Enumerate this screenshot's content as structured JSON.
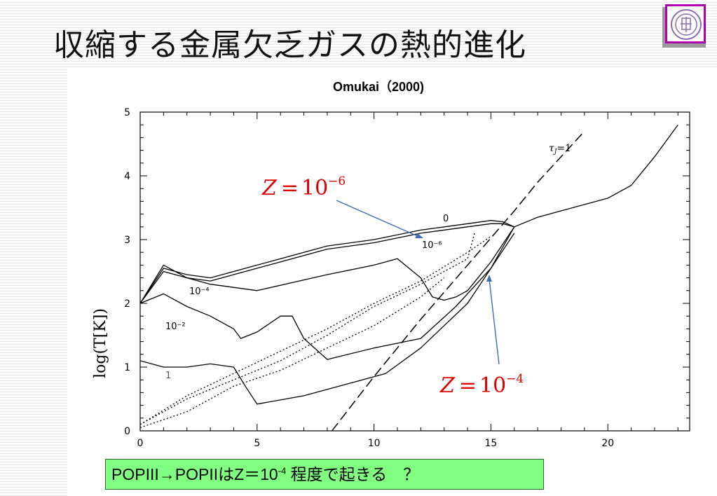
{
  "slide": {
    "title": "収縮する金属欠乏ガスの熱的進化",
    "citation": "Omukai（2000)",
    "caption_main": "POPIII→POPIIはZ＝10",
    "caption_exp": "-4",
    "caption_tail": " 程度で起きる　？"
  },
  "annotations": {
    "z6_base": "Z",
    "z6_eq": "=",
    "z6_mant": "10",
    "z6_exp": "−6",
    "z4_base": "Z",
    "z4_eq": "=",
    "z4_mant": "10",
    "z4_exp": "−4",
    "tau_label": "τ",
    "tau_sub": "J",
    "tau_eq": "=1",
    "curve_labels": [
      "0",
      "10⁻⁶",
      "10⁻⁴",
      "10⁻²",
      "1"
    ]
  },
  "chart_data": {
    "type": "line",
    "ylabel": "log(T[K])",
    "xlabel": "",
    "xlim": [
      0,
      23.5
    ],
    "ylim": [
      0,
      5
    ],
    "xticks": [
      "0",
      "5",
      "10",
      "15",
      "20"
    ],
    "yticks": [
      "0",
      "1",
      "2",
      "3",
      "4",
      "5"
    ],
    "series": [
      {
        "name": "0",
        "x": [
          0,
          1,
          2,
          3,
          5,
          8,
          10,
          12,
          14,
          15,
          15.5,
          16,
          17,
          18,
          20,
          21,
          22,
          23
        ],
        "y": [
          2.0,
          2.55,
          2.45,
          2.4,
          2.6,
          2.9,
          3.0,
          3.15,
          3.25,
          3.3,
          3.28,
          3.2,
          3.35,
          3.45,
          3.65,
          3.85,
          4.3,
          4.8
        ]
      },
      {
        "name": "10⁻⁶",
        "x": [
          0,
          1,
          2,
          3,
          5,
          8,
          10,
          12,
          14,
          15,
          15.5,
          16
        ],
        "y": [
          2.0,
          2.5,
          2.4,
          2.35,
          2.55,
          2.85,
          2.95,
          3.1,
          3.2,
          3.25,
          3.25,
          3.2
        ]
      },
      {
        "name": "10⁻⁴",
        "x": [
          0,
          1,
          2,
          3,
          5,
          8,
          10,
          11,
          12,
          12.5,
          13,
          13.5,
          14,
          15,
          16
        ],
        "y": [
          2.0,
          2.6,
          2.4,
          2.3,
          2.2,
          2.45,
          2.6,
          2.7,
          2.4,
          2.1,
          2.05,
          2.1,
          2.2,
          2.65,
          3.2
        ]
      },
      {
        "name": "10⁻²",
        "x": [
          0,
          1,
          2,
          3,
          4,
          4.3,
          5,
          6,
          6.5,
          7,
          8,
          10,
          12,
          13.5,
          15,
          16
        ],
        "y": [
          2.0,
          2.15,
          1.95,
          1.8,
          1.6,
          1.45,
          1.55,
          1.8,
          1.8,
          1.45,
          1.12,
          1.3,
          1.45,
          1.95,
          2.55,
          3.2
        ]
      },
      {
        "name": "1",
        "x": [
          0,
          1,
          2,
          3,
          4,
          4.5,
          5,
          7,
          9,
          10.5,
          12,
          14,
          16
        ],
        "y": [
          1.1,
          1.0,
          1.0,
          1.05,
          1.0,
          0.7,
          0.42,
          0.55,
          0.75,
          0.9,
          1.3,
          2.0,
          3.1
        ]
      },
      {
        "name": "",
        "x": [
          0,
          2,
          4,
          6,
          8,
          10,
          12,
          14,
          14.3
        ],
        "y": [
          0.1,
          0.5,
          0.8,
          1.1,
          1.5,
          1.95,
          2.3,
          2.7,
          3.1
        ],
        "style": "dotted"
      },
      {
        "name": "",
        "x": [
          0,
          2,
          4,
          6,
          8,
          10,
          12,
          14,
          15
        ],
        "y": [
          0.1,
          0.55,
          0.9,
          1.25,
          1.6,
          2.0,
          2.35,
          2.8,
          3.05
        ],
        "style": "dotted"
      },
      {
        "name": "",
        "x": [
          0,
          2,
          4,
          6,
          8,
          10,
          12,
          13
        ],
        "y": [
          0.05,
          0.3,
          0.7,
          0.95,
          1.3,
          1.65,
          2.1,
          2.4
        ],
        "style": "dotted"
      },
      {
        "name": "",
        "x": [
          8.2,
          10,
          12,
          14,
          16,
          17,
          19
        ],
        "y": [
          0,
          0.85,
          1.75,
          2.6,
          3.45,
          3.9,
          4.7
        ],
        "style": "dashed"
      }
    ]
  }
}
